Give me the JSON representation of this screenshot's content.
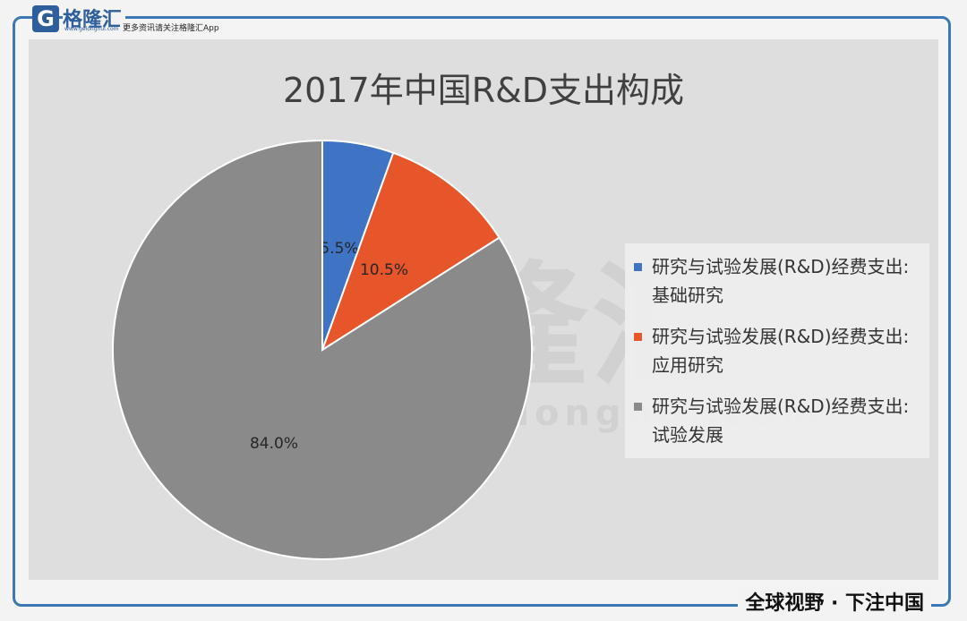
{
  "brand": {
    "logo_mark": "G",
    "logo_text": "格隆汇",
    "logo_url": "www.gelonghui.com",
    "slogan": "更多资讯请关注格隆汇App",
    "footer": "全球视野 · 下注中国",
    "watermark_text": "格隆汇",
    "watermark_url": "www.gelonghui.com"
  },
  "colors": {
    "frame": "#3c78b4",
    "plot_bg": "#dedede"
  },
  "chart_data": {
    "type": "pie",
    "title": "2017年中国R&D支出构成",
    "legend_position": "right",
    "slices": [
      {
        "name": "研究与试验发展(R&D)经费支出:基础研究",
        "value": 5.5,
        "label": "5.5%",
        "color": "#3f74c4"
      },
      {
        "name": "研究与试验发展(R&D)经费支出:应用研究",
        "value": 10.5,
        "label": "10.5%",
        "color": "#e7552a"
      },
      {
        "name": "研究与试验发展(R&D)经费支出:试验发展",
        "value": 84.0,
        "label": "84.0%",
        "color": "#8a8a8a"
      }
    ]
  }
}
